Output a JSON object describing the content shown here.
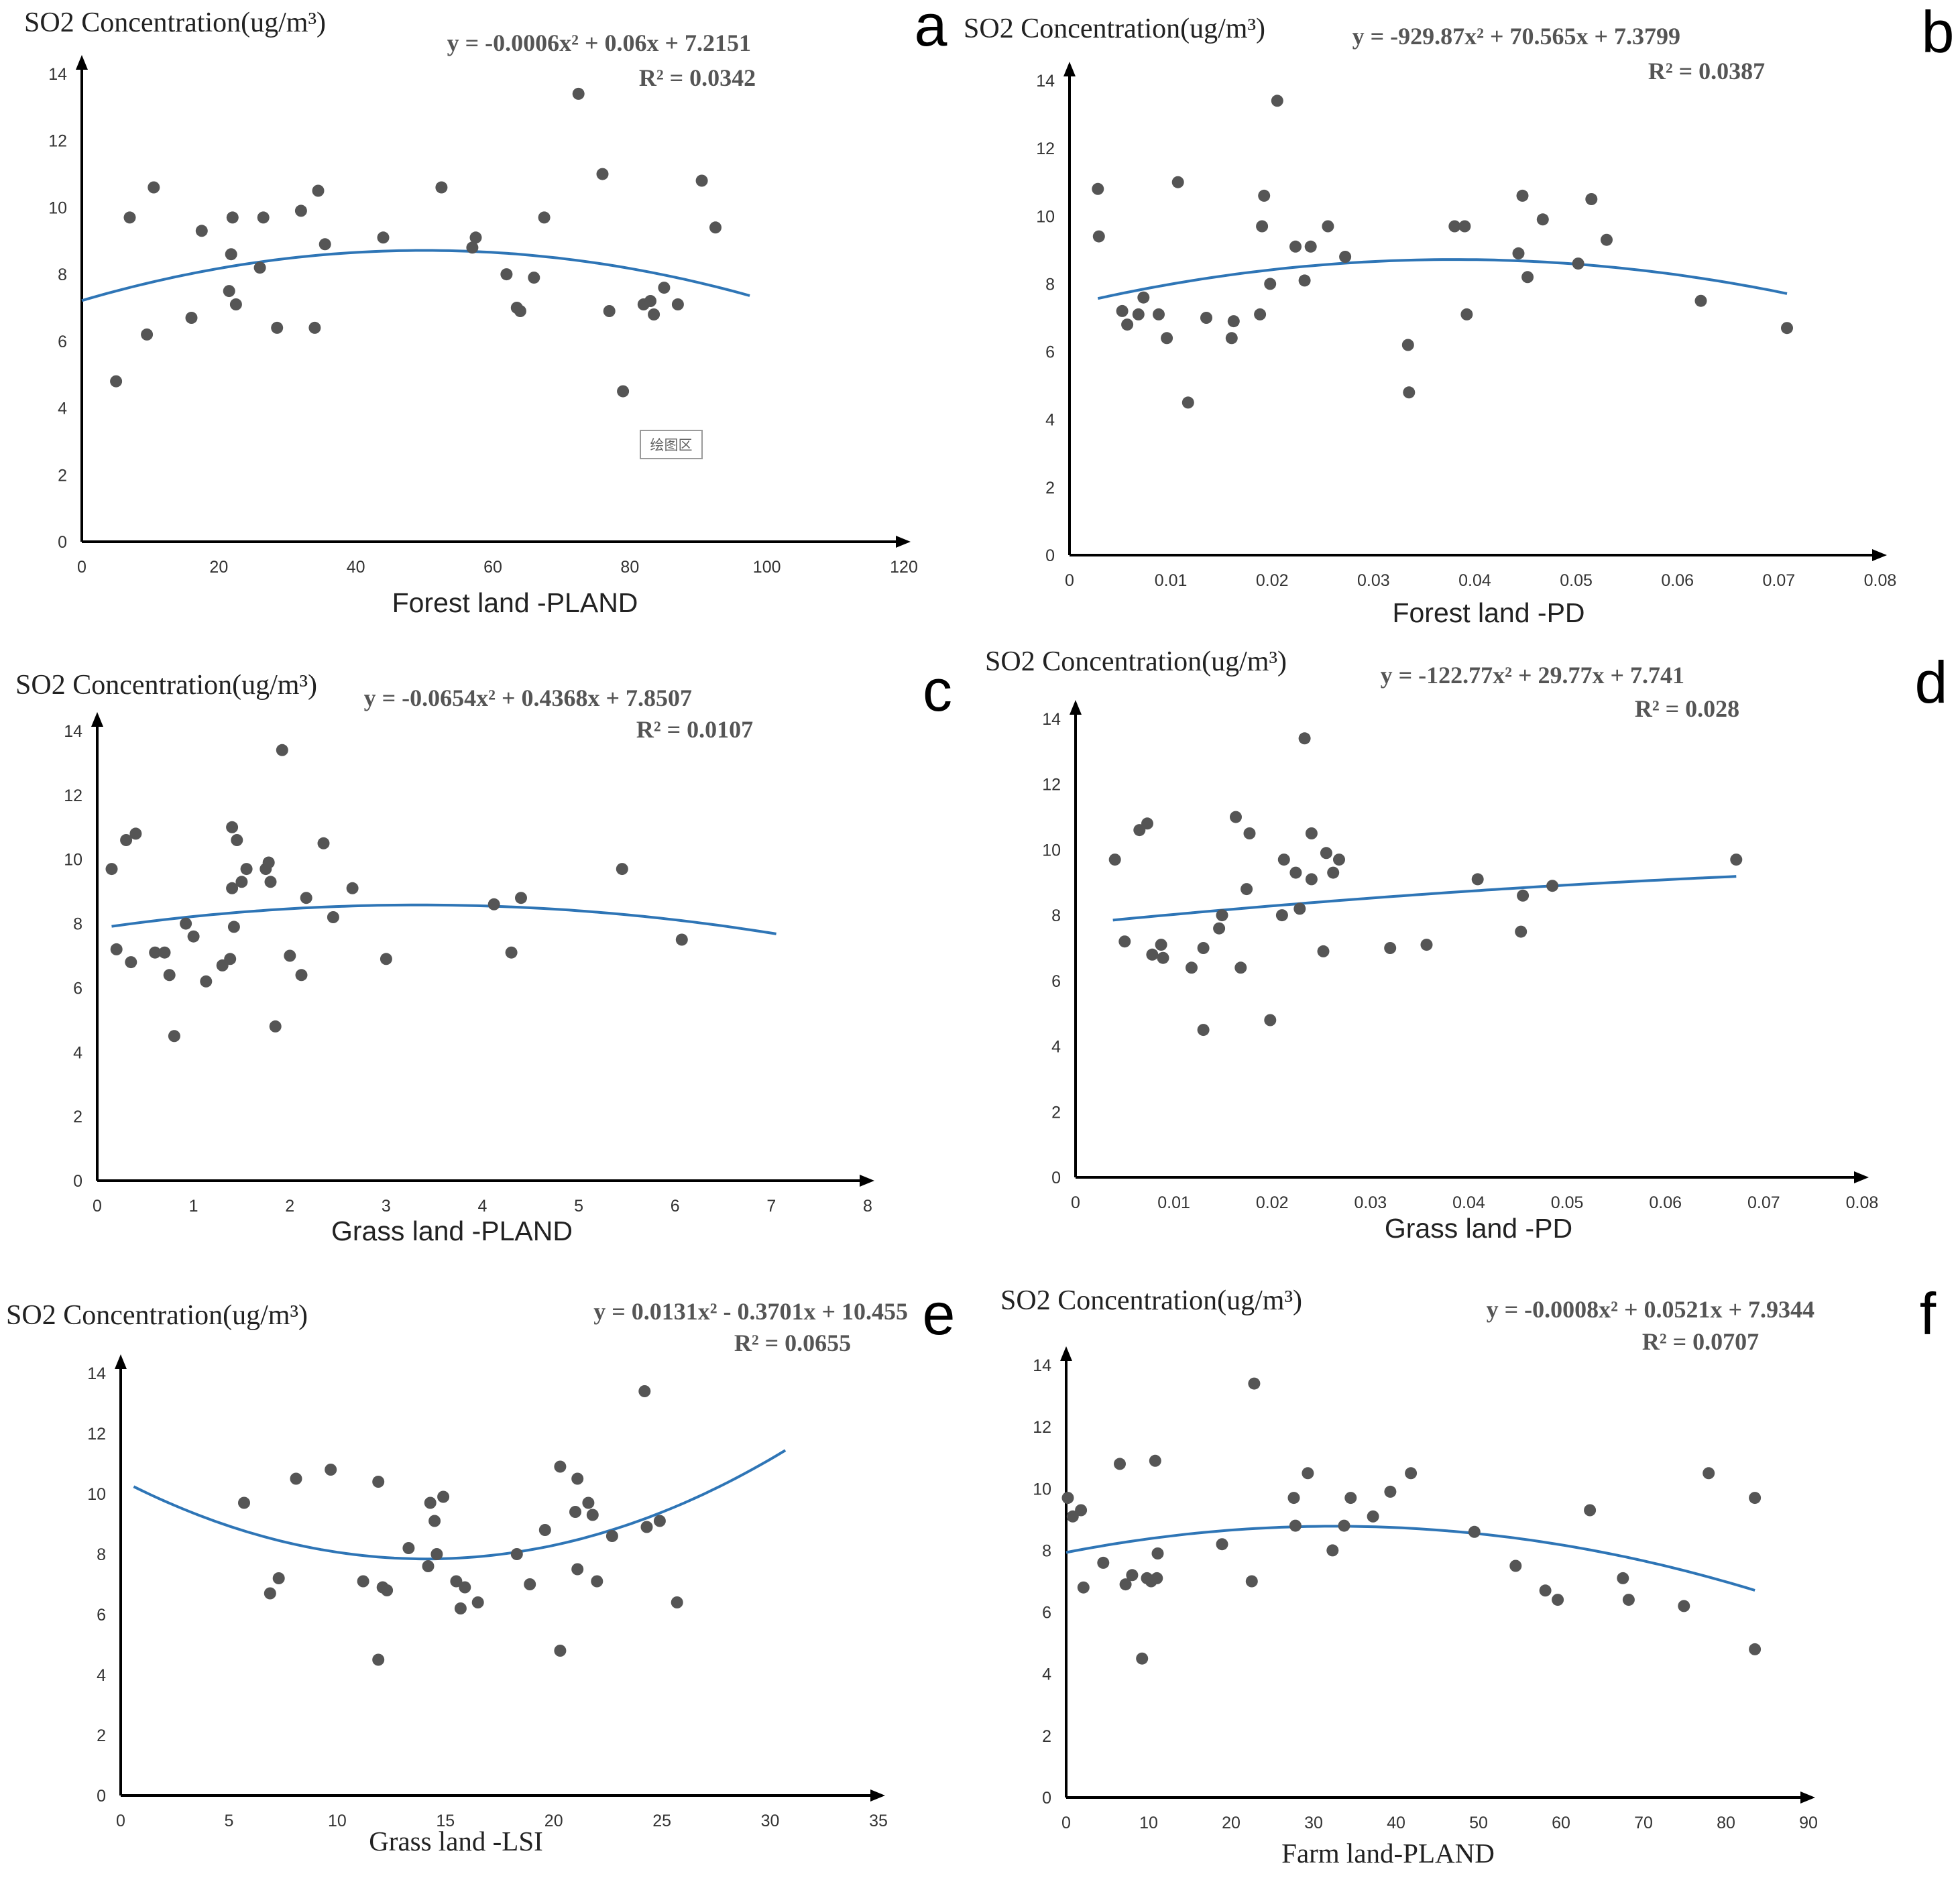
{
  "figure": {
    "colors": {
      "fit_line": "#2e75b6",
      "points": "#555555",
      "axis": "#000000",
      "equation": "#555555"
    }
  },
  "chart_data": [
    {
      "panel": "a",
      "type": "scatter",
      "title": "SO2 Concentration(ug/m³)",
      "ylabel": "SO2 Concentration(ug/m³)",
      "xlabel": "Forest land -PLAND",
      "equation": "y = -0.0006x² + 0.06x + 7.2151",
      "r2": "R² = 0.0342",
      "xlim": [
        0,
        120
      ],
      "ylim": [
        0,
        14
      ],
      "xticks": [
        "0",
        "20",
        "40",
        "60",
        "80",
        "100",
        "120"
      ],
      "yticks": [
        "0",
        "2",
        "4",
        "6",
        "8",
        "10",
        "12",
        "14"
      ],
      "fit": {
        "a": -0.0006,
        "b": 0.06,
        "c": 7.2151,
        "x_range": [
          0,
          97.5
        ]
      },
      "annotation": "绘图区",
      "points": [
        [
          5,
          4.8
        ],
        [
          7,
          9.7
        ],
        [
          9.5,
          6.2
        ],
        [
          10.5,
          10.6
        ],
        [
          16,
          6.7
        ],
        [
          17.5,
          9.3
        ],
        [
          21.5,
          7.5
        ],
        [
          21.8,
          8.6
        ],
        [
          22,
          9.7
        ],
        [
          22.5,
          7.1
        ],
        [
          26,
          8.2
        ],
        [
          26.5,
          9.7
        ],
        [
          28.5,
          6.4
        ],
        [
          32,
          9.9
        ],
        [
          34,
          6.4
        ],
        [
          34.5,
          10.5
        ],
        [
          35.5,
          8.9
        ],
        [
          44,
          9.1
        ],
        [
          52.5,
          10.6
        ],
        [
          57,
          8.8
        ],
        [
          57.5,
          9.1
        ],
        [
          62,
          8
        ],
        [
          63.5,
          7
        ],
        [
          64,
          6.9
        ],
        [
          66,
          7.9
        ],
        [
          67.5,
          9.7
        ],
        [
          72.5,
          13.4
        ],
        [
          76,
          11
        ],
        [
          77,
          6.9
        ],
        [
          79,
          4.5
        ],
        [
          82,
          7.1
        ],
        [
          83,
          7.2
        ],
        [
          83.5,
          6.8
        ],
        [
          85,
          7.6
        ],
        [
          87,
          7.1
        ],
        [
          90.5,
          10.8
        ],
        [
          92.5,
          9.4
        ]
      ]
    },
    {
      "panel": "b",
      "type": "scatter",
      "title": "SO2 Concentration(ug/m³)",
      "ylabel": "SO2 Concentration(ug/m³)",
      "xlabel": "Forest land -PD",
      "equation": "y = -929.87x² + 70.565x + 7.3799",
      "r2": "R² = 0.0387",
      "xlim": [
        0,
        0.08
      ],
      "ylim": [
        0,
        14
      ],
      "xticks": [
        "0",
        "0.01",
        "0.02",
        "0.03",
        "0.04",
        "0.05",
        "0.06",
        "0.07",
        "0.08"
      ],
      "yticks": [
        "0",
        "2",
        "4",
        "6",
        "8",
        "10",
        "12",
        "14"
      ],
      "fit": {
        "a": -929.87,
        "b": 70.565,
        "c": 7.3799,
        "x_range": [
          0.0028,
          0.0708
        ]
      },
      "points": [
        [
          0.0028,
          10.8
        ],
        [
          0.0029,
          9.4
        ],
        [
          0.0052,
          7.2
        ],
        [
          0.0057,
          6.8
        ],
        [
          0.0068,
          7.1
        ],
        [
          0.0073,
          7.6
        ],
        [
          0.0088,
          7.1
        ],
        [
          0.0096,
          6.4
        ],
        [
          0.0107,
          11
        ],
        [
          0.0117,
          4.5
        ],
        [
          0.0135,
          7
        ],
        [
          0.016,
          6.4
        ],
        [
          0.0162,
          6.9
        ],
        [
          0.0188,
          7.1
        ],
        [
          0.019,
          9.7
        ],
        [
          0.0192,
          10.6
        ],
        [
          0.0198,
          8
        ],
        [
          0.0205,
          13.4
        ],
        [
          0.0223,
          9.1
        ],
        [
          0.0232,
          8.1
        ],
        [
          0.0238,
          9.1
        ],
        [
          0.0255,
          9.7
        ],
        [
          0.0272,
          8.8
        ],
        [
          0.0334,
          6.2
        ],
        [
          0.0335,
          4.8
        ],
        [
          0.038,
          9.7
        ],
        [
          0.039,
          9.7
        ],
        [
          0.0392,
          7.1
        ],
        [
          0.0443,
          8.9
        ],
        [
          0.0447,
          10.6
        ],
        [
          0.0452,
          8.2
        ],
        [
          0.0467,
          9.9
        ],
        [
          0.0502,
          8.6
        ],
        [
          0.0515,
          10.5
        ],
        [
          0.053,
          9.3
        ],
        [
          0.0623,
          7.5
        ],
        [
          0.0708,
          6.7
        ]
      ]
    },
    {
      "panel": "c",
      "type": "scatter",
      "title": "SO2 Concentration(ug/m³)",
      "ylabel": "SO2 Concentration(ug/m³)",
      "xlabel": "Grass land -PLAND",
      "equation": "y = -0.0654x² + 0.4368x + 7.8507",
      "r2": "R² = 0.0107",
      "xlim": [
        0,
        8
      ],
      "ylim": [
        0,
        14
      ],
      "xticks": [
        "0",
        "1",
        "2",
        "3",
        "4",
        "5",
        "6",
        "7",
        "8"
      ],
      "yticks": [
        "0",
        "2",
        "4",
        "6",
        "8",
        "10",
        "12",
        "14"
      ],
      "fit": {
        "a": -0.0654,
        "b": 0.4368,
        "c": 7.8507,
        "x_range": [
          0.15,
          7.05
        ]
      },
      "points": [
        [
          0.15,
          9.7
        ],
        [
          0.2,
          7.2
        ],
        [
          0.3,
          10.6
        ],
        [
          0.35,
          6.8
        ],
        [
          0.4,
          10.8
        ],
        [
          0.6,
          7.1
        ],
        [
          0.7,
          7.1
        ],
        [
          0.75,
          6.4
        ],
        [
          0.8,
          4.5
        ],
        [
          0.92,
          8
        ],
        [
          1,
          7.6
        ],
        [
          1.13,
          6.2
        ],
        [
          1.3,
          6.7
        ],
        [
          1.38,
          6.9
        ],
        [
          1.4,
          9.1
        ],
        [
          1.4,
          11
        ],
        [
          1.42,
          7.9
        ],
        [
          1.45,
          10.6
        ],
        [
          1.5,
          9.3
        ],
        [
          1.55,
          9.7
        ],
        [
          1.75,
          9.7
        ],
        [
          1.78,
          9.9
        ],
        [
          1.8,
          9.3
        ],
        [
          1.85,
          4.8
        ],
        [
          1.92,
          13.4
        ],
        [
          2,
          7
        ],
        [
          2.12,
          6.4
        ],
        [
          2.17,
          8.8
        ],
        [
          2.35,
          10.5
        ],
        [
          2.45,
          8.2
        ],
        [
          2.65,
          9.1
        ],
        [
          3,
          6.9
        ],
        [
          4.12,
          8.6
        ],
        [
          4.3,
          7.1
        ],
        [
          4.4,
          8.8
        ],
        [
          5.45,
          9.7
        ],
        [
          6.07,
          7.5
        ]
      ]
    },
    {
      "panel": "d",
      "type": "scatter",
      "title": "SO2 Concentration(ug/m³)",
      "ylabel": "SO2 Concentration(ug/m³)",
      "xlabel": "Grass land -PD",
      "equation": "y = -122.77x² + 29.77x + 7.741",
      "r2": "R² = 0.028",
      "xlim": [
        0,
        0.08
      ],
      "ylim": [
        0,
        14
      ],
      "xticks": [
        "0",
        "0.01",
        "0.02",
        "0.03",
        "0.04",
        "0.05",
        "0.06",
        "0.07",
        "0.08"
      ],
      "yticks": [
        "0",
        "2",
        "4",
        "6",
        "8",
        "10",
        "12",
        "14"
      ],
      "fit": {
        "a": -122.77,
        "b": 29.77,
        "c": 7.741,
        "x_range": [
          0.0038,
          0.0672
        ]
      },
      "points": [
        [
          0.004,
          9.7
        ],
        [
          0.005,
          7.2
        ],
        [
          0.0065,
          10.6
        ],
        [
          0.0073,
          10.8
        ],
        [
          0.0078,
          6.8
        ],
        [
          0.0087,
          7.1
        ],
        [
          0.0089,
          6.7
        ],
        [
          0.0118,
          6.4
        ],
        [
          0.013,
          4.5
        ],
        [
          0.013,
          7
        ],
        [
          0.0146,
          7.6
        ],
        [
          0.0149,
          8
        ],
        [
          0.0163,
          11
        ],
        [
          0.0168,
          6.4
        ],
        [
          0.0174,
          8.8
        ],
        [
          0.0177,
          10.5
        ],
        [
          0.0198,
          4.8
        ],
        [
          0.021,
          8
        ],
        [
          0.0212,
          9.7
        ],
        [
          0.0224,
          9.3
        ],
        [
          0.0228,
          8.2
        ],
        [
          0.0233,
          13.4
        ],
        [
          0.024,
          9.1
        ],
        [
          0.024,
          10.5
        ],
        [
          0.0252,
          6.9
        ],
        [
          0.0255,
          9.9
        ],
        [
          0.0262,
          9.3
        ],
        [
          0.0268,
          9.7
        ],
        [
          0.032,
          7
        ],
        [
          0.0357,
          7.1
        ],
        [
          0.0409,
          9.1
        ],
        [
          0.0455,
          8.6
        ],
        [
          0.0453,
          7.5
        ],
        [
          0.0485,
          8.9
        ],
        [
          0.0672,
          9.7
        ]
      ]
    },
    {
      "panel": "e",
      "type": "scatter",
      "title": "SO2 Concentration(ug/m³)",
      "ylabel": "SO2 Concentration(ug/m³)",
      "xlabel": "Grass land -LSI",
      "equation": "y = 0.0131x² - 0.3701x + 10.455",
      "r2": "R² = 0.0655",
      "xlim": [
        0,
        35
      ],
      "ylim": [
        0,
        14
      ],
      "xticks": [
        "0",
        "5",
        "10",
        "15",
        "20",
        "25",
        "30",
        "35"
      ],
      "yticks": [
        "0",
        "2",
        "4",
        "6",
        "8",
        "10",
        "12",
        "14"
      ],
      "fit": {
        "a": 0.0131,
        "b": -0.3701,
        "c": 10.455,
        "x_range": [
          0.6,
          30.7
        ]
      },
      "points": [
        [
          5.7,
          9.7
        ],
        [
          6.9,
          6.7
        ],
        [
          7.3,
          7.2
        ],
        [
          8.1,
          10.5
        ],
        [
          9.7,
          10.8
        ],
        [
          11.2,
          7.1
        ],
        [
          11.9,
          10.4
        ],
        [
          11.9,
          4.5
        ],
        [
          12.1,
          6.9
        ],
        [
          12.3,
          6.8
        ],
        [
          13.3,
          8.2
        ],
        [
          14.2,
          7.6
        ],
        [
          14.3,
          9.7
        ],
        [
          14.5,
          9.1
        ],
        [
          14.6,
          8
        ],
        [
          14.9,
          9.9
        ],
        [
          15.5,
          7.1
        ],
        [
          15.7,
          6.2
        ],
        [
          15.9,
          6.9
        ],
        [
          16.5,
          6.4
        ],
        [
          18.3,
          8
        ],
        [
          18.9,
          7
        ],
        [
          19.6,
          8.8
        ],
        [
          20.3,
          10.9
        ],
        [
          20.3,
          4.8
        ],
        [
          21,
          9.4
        ],
        [
          21.1,
          7.5
        ],
        [
          21.1,
          10.5
        ],
        [
          21.6,
          9.7
        ],
        [
          21.8,
          9.3
        ],
        [
          22,
          7.1
        ],
        [
          22.7,
          8.6
        ],
        [
          24.2,
          13.4
        ],
        [
          24.3,
          8.9
        ],
        [
          24.9,
          9.1
        ],
        [
          25.7,
          6.4
        ]
      ]
    },
    {
      "panel": "f",
      "type": "scatter",
      "title": "SO2 Concentration(ug/m³)",
      "ylabel": "SO2 Concentration(ug/m³)",
      "xlabel": "Farm land-PLAND",
      "equation": "y = -0.0008x² + 0.0521x + 7.9344",
      "r2": "R² = 0.0707",
      "xlim": [
        0,
        90
      ],
      "ylim": [
        0,
        14
      ],
      "xticks": [
        "0",
        "10",
        "20",
        "30",
        "40",
        "50",
        "60",
        "70",
        "80",
        "90"
      ],
      "yticks": [
        "0",
        "2",
        "4",
        "6",
        "8",
        "10",
        "12",
        "14"
      ],
      "fit": {
        "a": -0.0008,
        "b": 0.0521,
        "c": 7.9344,
        "x_range": [
          0,
          83.5
        ]
      },
      "points": [
        [
          0.2,
          9.7
        ],
        [
          0.8,
          9.1
        ],
        [
          1.8,
          9.3
        ],
        [
          2.1,
          6.8
        ],
        [
          4.5,
          7.6
        ],
        [
          6.5,
          10.8
        ],
        [
          7.2,
          6.9
        ],
        [
          8,
          7.2
        ],
        [
          9.2,
          4.5
        ],
        [
          9.8,
          7.1
        ],
        [
          10.3,
          7
        ],
        [
          10.8,
          10.9
        ],
        [
          11,
          7.1
        ],
        [
          11.1,
          7.9
        ],
        [
          18.9,
          8.2
        ],
        [
          22.8,
          13.4
        ],
        [
          22.5,
          7
        ],
        [
          27.6,
          9.7
        ],
        [
          27.8,
          8.8
        ],
        [
          29.3,
          10.5
        ],
        [
          32.3,
          8
        ],
        [
          33.7,
          8.8
        ],
        [
          34.5,
          9.7
        ],
        [
          37.2,
          9.1
        ],
        [
          39.3,
          9.9
        ],
        [
          41.8,
          10.5
        ],
        [
          49.5,
          8.6
        ],
        [
          54.5,
          7.5
        ],
        [
          58.1,
          6.7
        ],
        [
          59.6,
          6.4
        ],
        [
          63.5,
          9.3
        ],
        [
          67.5,
          7.1
        ],
        [
          68.2,
          6.4
        ],
        [
          74.9,
          6.2
        ],
        [
          77.9,
          10.5
        ],
        [
          83.5,
          9.7
        ],
        [
          83.5,
          4.8
        ]
      ]
    }
  ]
}
